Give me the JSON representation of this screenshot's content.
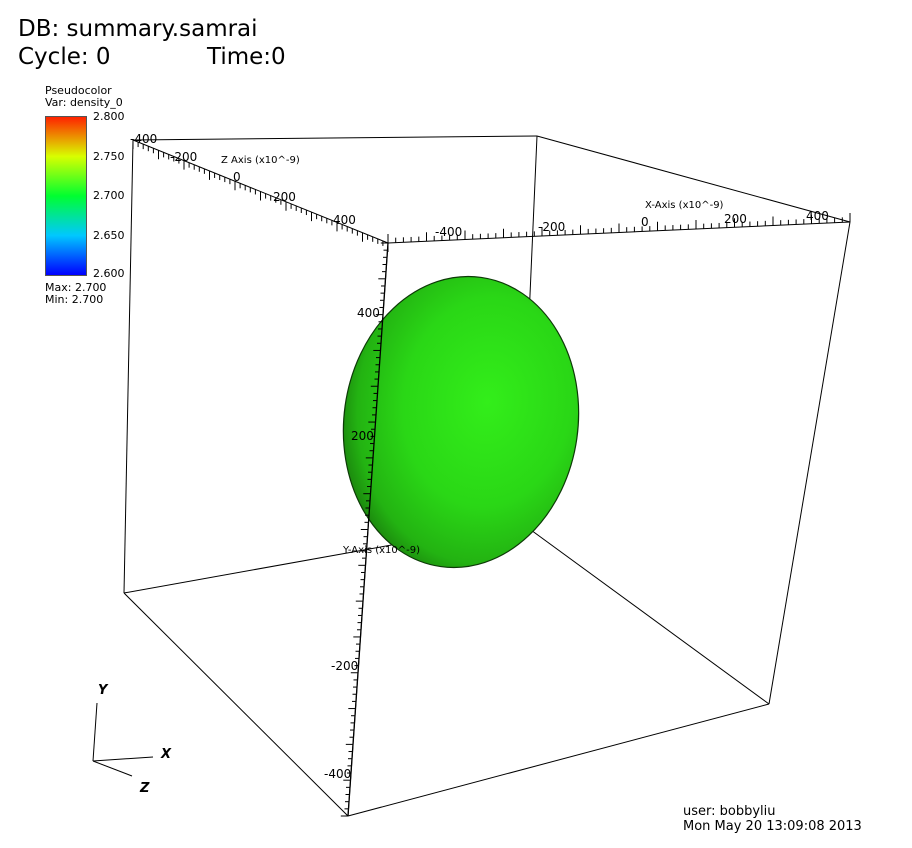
{
  "header": {
    "db_label": "DB: summary.samrai",
    "cycle_label": "Cycle: 0",
    "time_label": "Time:0"
  },
  "legend": {
    "plot_type": "Pseudocolor",
    "var_label": "Var: density_0",
    "ticks": [
      "2.800",
      "2.750",
      "2.700",
      "2.650",
      "2.600"
    ],
    "max_label": "Max: 2.700",
    "min_label": "Min: 2.700",
    "colors": [
      "#ff2200",
      "#d8ff00",
      "#00ff30",
      "#00c8ff",
      "#0000ff"
    ]
  },
  "axes": {
    "x_title": "X-Axis (x10^-9)",
    "y_title": "Y-Axis (x10^-9)",
    "z_title": "Z Axis (x10^-9)",
    "x_ticks": [
      "-400",
      "-200",
      "0",
      "200",
      "400"
    ],
    "y_ticks": [
      "400",
      "200",
      "-200",
      "-400"
    ],
    "z_ticks": [
      "-400",
      "-200",
      "0",
      "200",
      "400"
    ]
  },
  "triad": {
    "x": "X",
    "y": "Y",
    "z": "Z"
  },
  "footer": {
    "user_label": "user: bobbyliu",
    "date_label": "Mon May 20 13:09:08 2013"
  },
  "sphere": {
    "color": "#2ee81a"
  }
}
